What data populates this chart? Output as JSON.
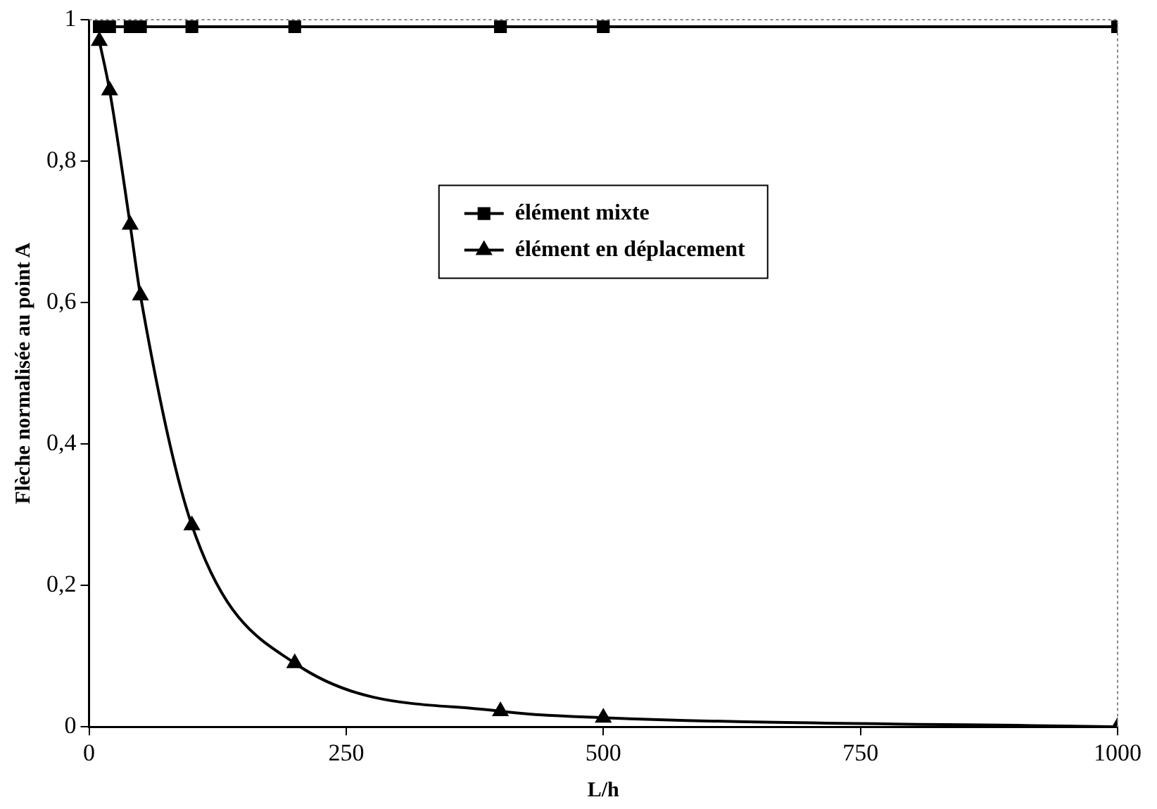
{
  "chart_data": {
    "type": "line",
    "xlabel": "L/h",
    "ylabel": "Flèche normalisée au point A",
    "x": [
      10,
      20,
      40,
      50,
      100,
      200,
      400,
      500,
      1000
    ],
    "series": [
      {
        "name": "élément mixte",
        "color": "#000000",
        "marker": "square",
        "values": [
          0.99,
          0.99,
          0.99,
          0.99,
          0.99,
          0.99,
          0.99,
          0.99,
          0.99
        ]
      },
      {
        "name": "élément en déplacement",
        "color": "#000000",
        "marker": "triangle",
        "values": [
          0.97,
          0.9,
          0.71,
          0.61,
          0.285,
          0.09,
          0.022,
          0.013,
          0.0
        ]
      }
    ],
    "xlim": [
      0,
      1000
    ],
    "xticks": [
      0,
      250,
      500,
      750,
      1000
    ],
    "ylim": [
      0,
      1
    ],
    "yticks": [
      0,
      {
        "value": 0.2,
        "label": "0,2"
      },
      {
        "value": 0.4,
        "label": "0,4"
      },
      {
        "value": 0.6,
        "label": "0,6"
      },
      {
        "value": 0.8,
        "label": "0,8"
      },
      1
    ],
    "grid": false,
    "legend": "center"
  }
}
